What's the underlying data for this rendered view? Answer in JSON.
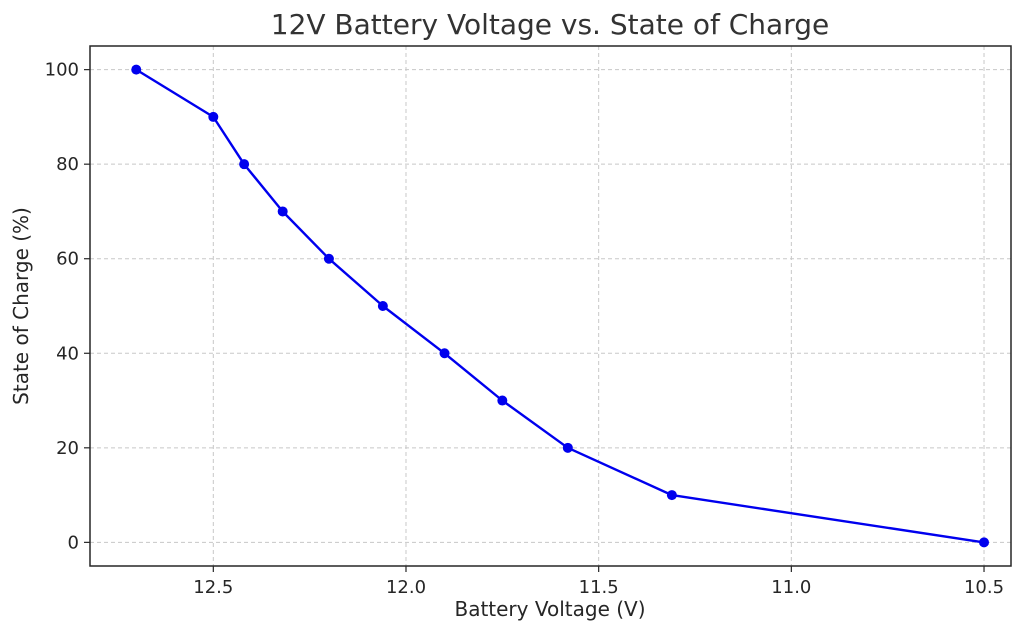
{
  "chart_data": {
    "type": "line",
    "title": "12V Battery Voltage vs. State of Charge",
    "xlabel": "Battery Voltage (V)",
    "ylabel": "State of Charge (%)",
    "x_reversed": true,
    "xlim": [
      12.82,
      10.43
    ],
    "ylim": [
      -5,
      105
    ],
    "xticks": [
      12.5,
      12.0,
      11.5,
      11.0,
      10.5
    ],
    "xtick_labels": [
      "12.5",
      "12.0",
      "11.5",
      "11.0",
      "10.5"
    ],
    "yticks": [
      0,
      20,
      40,
      60,
      80,
      100
    ],
    "ytick_labels": [
      "0",
      "20",
      "40",
      "60",
      "80",
      "100"
    ],
    "grid": true,
    "color": "#0000ee",
    "series": [
      {
        "x": [
          12.7,
          12.5,
          12.42,
          12.32,
          12.2,
          12.06,
          11.9,
          11.75,
          11.58,
          11.31,
          10.5
        ],
        "y": [
          100,
          90,
          80,
          70,
          60,
          50,
          40,
          30,
          20,
          10,
          0
        ]
      }
    ]
  }
}
